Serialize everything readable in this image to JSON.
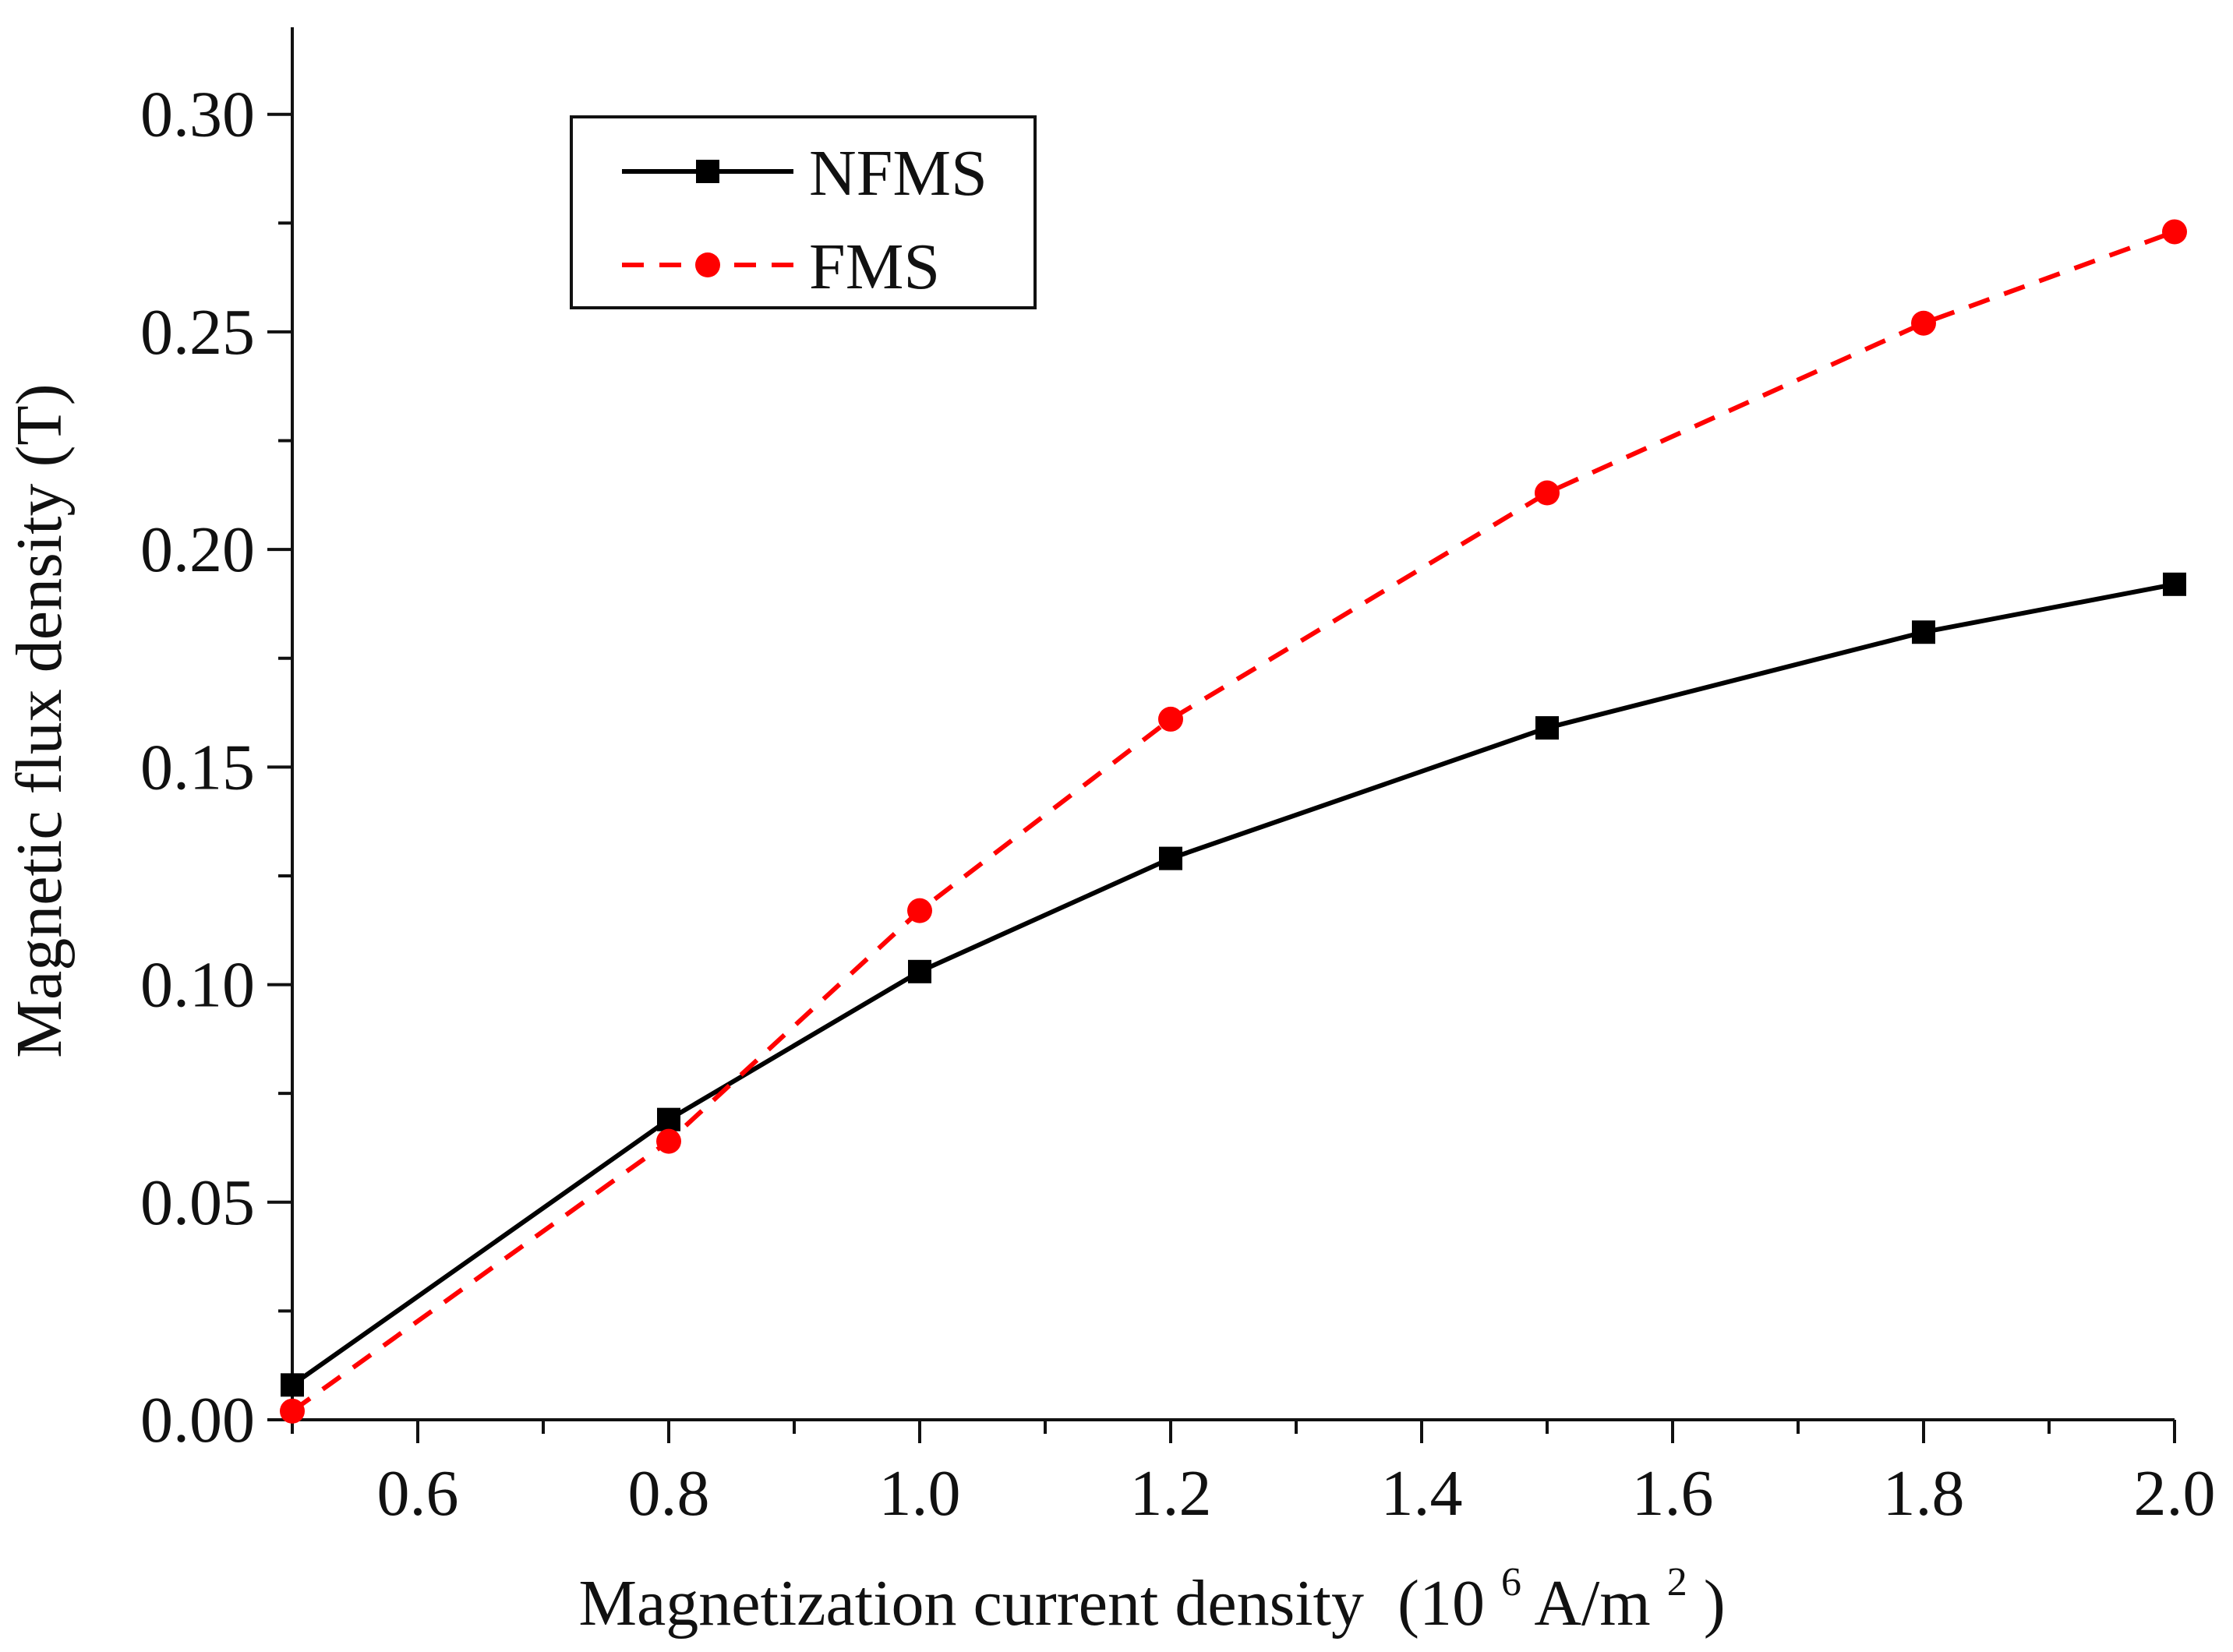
{
  "chart_data": {
    "type": "line",
    "title": "",
    "xlabel": "Magnetization current density",
    "xlabel_unit_parts": {
      "open": "(10",
      "exp": "6",
      "middle": " A/m",
      "sup2": "2",
      "close": ")"
    },
    "ylabel": "Magnetic flux density (T)",
    "xlim": [
      0.5,
      2.0
    ],
    "ylim": [
      0.0,
      0.32
    ],
    "x_ticks": [
      0.6,
      0.8,
      1.0,
      1.2,
      1.4,
      1.6,
      1.8,
      2.0
    ],
    "x_tick_labels": [
      "0.6",
      "0.8",
      "1.0",
      "1.2",
      "1.4",
      "1.6",
      "1.8",
      "2.0"
    ],
    "y_ticks": [
      0.0,
      0.05,
      0.1,
      0.15,
      0.2,
      0.25,
      0.3
    ],
    "y_tick_labels": [
      "0.00",
      "0.05",
      "0.10",
      "0.15",
      "0.20",
      "0.25",
      "0.30"
    ],
    "grid": false,
    "legend_position": "top-left",
    "series": [
      {
        "name": "NFMS",
        "color": "#000000",
        "line_style": "solid",
        "marker": "square",
        "x": [
          0.5,
          0.8,
          1.0,
          1.2,
          1.5,
          1.8,
          2.0
        ],
        "y": [
          0.008,
          0.069,
          0.103,
          0.129,
          0.159,
          0.181,
          0.192
        ]
      },
      {
        "name": "FMS",
        "color": "#ff0000",
        "line_style": "dashed",
        "marker": "circle",
        "x": [
          0.5,
          0.8,
          1.0,
          1.2,
          1.5,
          1.8,
          2.0
        ],
        "y": [
          0.002,
          0.064,
          0.117,
          0.161,
          0.213,
          0.252,
          0.273
        ]
      }
    ]
  }
}
